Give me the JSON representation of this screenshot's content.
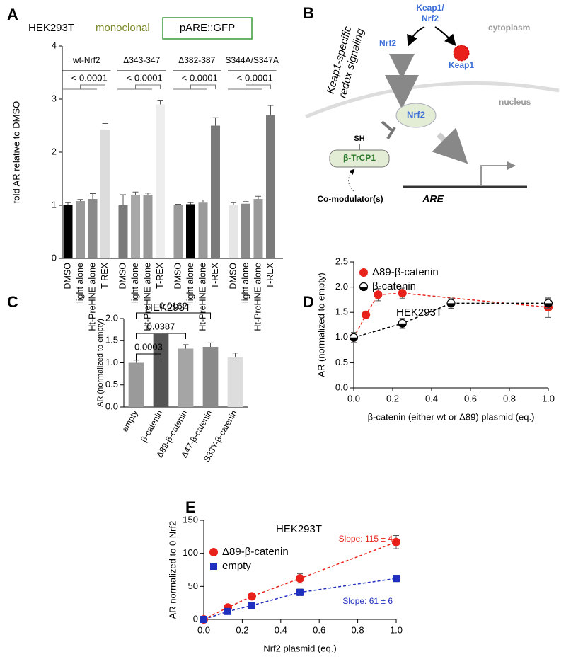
{
  "chart_data": [
    {
      "panel": "A",
      "type": "bar",
      "title": "HEK293T",
      "subtitle": "monoclonal",
      "annotation": "pARE::GFP",
      "ylabel": "fold AR relative to DMSO",
      "groups": [
        "wt-Nrf2",
        "Δ343-347",
        "Δ382-387",
        "S344A/S347A"
      ],
      "significance": [
        "< 0.0001",
        "< 0.0001",
        "< 0.0001",
        "< 0.0001"
      ],
      "categories": [
        "DMSO",
        "light alone",
        "Ht-PreHNE alone",
        "T-REX",
        "DMSO",
        "light alone",
        "Ht-PreHNE alone",
        "T-REX",
        "DMSO",
        "light alone",
        "Ht-PreHNE alone",
        "T-REX",
        "DMSO",
        "light alone",
        "Ht-PreHNE alone",
        "T-REX"
      ],
      "values": [
        1.0,
        1.08,
        1.12,
        2.42,
        1.0,
        1.2,
        1.2,
        2.9,
        1.0,
        1.02,
        1.05,
        2.5,
        1.0,
        1.03,
        1.12,
        2.7
      ],
      "errors": [
        0.05,
        0.03,
        0.1,
        0.12,
        0.2,
        0.05,
        0.03,
        0.08,
        0.02,
        0.03,
        0.05,
        0.15,
        0.05,
        0.04,
        0.05,
        0.18
      ],
      "colors": [
        "#000000",
        "#9a9a9a",
        "#8a8a8a",
        "#dcdcdc",
        "#7a7a7a",
        "#a8a8a8",
        "#999999",
        "#eeeeee",
        "#9a9a9a",
        "#000000",
        "#9a9a9a",
        "#7a7a7a",
        "#e6e6e6",
        "#8a8a8a",
        "#9a9a9a",
        "#7a7a7a"
      ],
      "ylim": [
        0,
        4
      ],
      "yticks": [
        0,
        1,
        2,
        3,
        4
      ]
    },
    {
      "panel": "C",
      "type": "bar",
      "title": "HEK293T",
      "ylabel": "AR (normalized to empty)",
      "categories": [
        "empty",
        "β-catenin",
        "Δ89-β-catenin",
        "Δ47-β-catenin",
        "S33Y-β-catenin"
      ],
      "values": [
        1.0,
        1.65,
        1.32,
        1.36,
        1.12
      ],
      "errors": [
        0.06,
        0.07,
        0.09,
        0.09,
        0.1
      ],
      "colors": [
        "#9a9a9a",
        "#555555",
        "#a5a5a5",
        "#8a8a8a",
        "#dddddd"
      ],
      "comparisons": [
        "0.0003",
        "0.0387",
        "0.0162"
      ],
      "ylim": [
        0,
        2
      ],
      "yticks": [
        {
          "value": 0,
          "label": "0.0"
        },
        0.5,
        {
          "value": 1,
          "label": "1.0"
        },
        1.5,
        {
          "value": 2,
          "label": "2.0"
        }
      ]
    },
    {
      "panel": "D",
      "type": "scatter",
      "title": "HEK293T",
      "ylabel": "AR (normalized to empty)",
      "xlabel": "β-catenin (either wt or Δ89) plasmid (eq.)",
      "legend": "upper left",
      "series": [
        {
          "name": "Δ89-β-catenin",
          "color": "#e8221b",
          "marker": "circle",
          "x": [
            0,
            0.0625,
            0.125,
            0.25,
            1.0
          ],
          "values": [
            1.0,
            1.45,
            1.85,
            1.88,
            1.6
          ],
          "errors": [
            0.1,
            0.04,
            0.12,
            0.1,
            0.2
          ]
        },
        {
          "name": "β-catenin",
          "color": "#000000",
          "marker": "half-circle",
          "x": [
            0,
            0.25,
            0.5,
            1.0
          ],
          "values": [
            1.0,
            1.28,
            1.68,
            1.68
          ],
          "errors": [
            0.05,
            0.1,
            0.1,
            0.1
          ]
        }
      ],
      "xlim": [
        0,
        1
      ],
      "xticks": [
        {
          "value": 0,
          "label": "0.0"
        },
        0.2,
        0.4,
        0.6,
        0.8,
        {
          "value": 1,
          "label": "1.0"
        }
      ],
      "ylim": [
        0,
        2.5
      ],
      "yticks": [
        {
          "value": 0,
          "label": "0.0"
        },
        0.5,
        {
          "value": 1,
          "label": "1.0"
        },
        1.5,
        {
          "value": 2,
          "label": "2.0"
        },
        2.5
      ]
    },
    {
      "panel": "E",
      "type": "scatter",
      "title": "HEK293T",
      "ylabel": "AR normalized to 0 Nrf2",
      "xlabel": "Nrf2 plasmid (eq.)",
      "legend": "upper left",
      "series": [
        {
          "name": "Δ89-β-catenin",
          "color": "#e8221b",
          "marker": "circle",
          "annotation": "Slope: 115 ± 4",
          "x": [
            0,
            0.125,
            0.25,
            0.5,
            1.0
          ],
          "values": [
            0,
            18,
            35,
            62,
            117
          ],
          "errors": [
            0,
            2,
            3,
            7,
            10
          ]
        },
        {
          "name": "empty",
          "color": "#1f2fbf",
          "marker": "square",
          "annotation": "Slope: 61 ± 6",
          "x": [
            0,
            0.125,
            0.25,
            0.5,
            1.0
          ],
          "values": [
            0,
            12,
            21,
            41,
            62
          ],
          "errors": [
            0,
            2,
            2,
            5,
            5
          ]
        }
      ],
      "xlim": [
        0,
        1
      ],
      "xticks": [
        {
          "value": 0,
          "label": "0.0"
        },
        0.2,
        0.4,
        0.6,
        0.8,
        {
          "value": 1,
          "label": "1.0"
        }
      ],
      "ylim": [
        0,
        150
      ],
      "yticks": [
        0,
        50,
        100,
        150
      ]
    }
  ],
  "diagram": {
    "panel": "B",
    "rotated_text": [
      "Keap1-specific",
      "redox signaling"
    ],
    "complex": [
      "Keap1/",
      "Nrf2"
    ],
    "cytoplasm": "cytoplasm",
    "nucleus": "nucleus",
    "free_nrf2": "Nrf2",
    "keap1": "Keap1",
    "nuclear_nrf2": "Nrf2",
    "sh": "SH",
    "btrcp": "β-TrCP1",
    "comodulator": "Co-modulator(s)",
    "are": "ARE"
  }
}
